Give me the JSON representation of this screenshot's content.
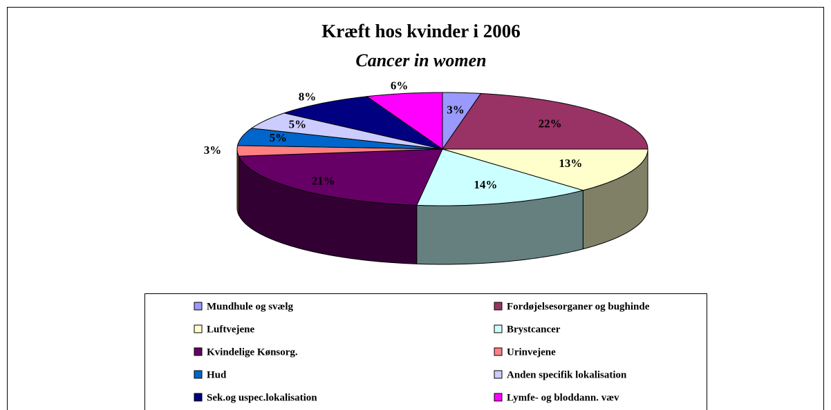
{
  "chart_data": {
    "type": "pie3d",
    "title": "Kræft hos kvinder i 2006",
    "subtitle": "Cancer in women",
    "categories": [
      "Mundhule og svælg",
      "Fordøjelsesorganer og bughinde",
      "Luftvejene",
      "Brystcancer",
      "Kvindelige Kønsorg.",
      "Urinvejene",
      "Hud",
      "Anden specifik lokalisation",
      "Sek.og uspec.lokalisation",
      "Lymfe- og bloddann. væv"
    ],
    "values": [
      3,
      22,
      13,
      14,
      21,
      3,
      5,
      5,
      8,
      6
    ],
    "value_labels": [
      "3%",
      "22%",
      "13%",
      "14%",
      "21%",
      "3%",
      "5%",
      "5%",
      "8%",
      "6%"
    ],
    "colors": [
      "#9999ff",
      "#993366",
      "#ffffcc",
      "#ccffff",
      "#660066",
      "#ff8080",
      "#0066cc",
      "#ccccff",
      "#000080",
      "#ff00ff"
    ],
    "legend": "bottom"
  }
}
